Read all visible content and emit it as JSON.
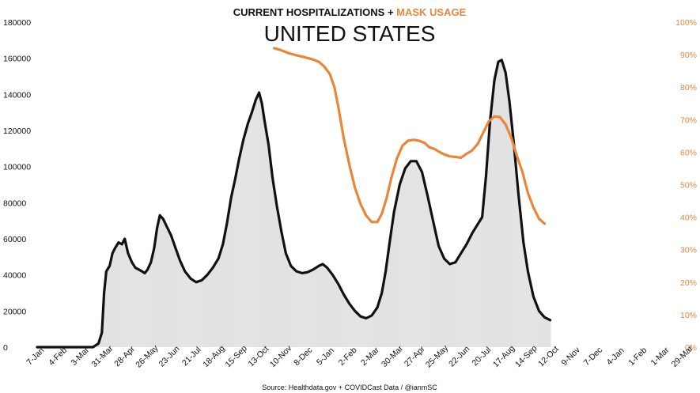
{
  "chart_data": {
    "type": "line",
    "title_part1": "CURRENT HOSPITALIZATIONS + ",
    "title_part2": "MASK USAGE",
    "subtitle": "UNITED STATES",
    "source": "Source: Healthdata.gov + COVIDCast Data / @ianmSC",
    "left_axis": {
      "ylim": [
        0,
        180000
      ],
      "ticks": [
        0,
        20000,
        40000,
        60000,
        80000,
        100000,
        120000,
        140000,
        160000,
        180000
      ],
      "tick_labels": [
        "0",
        "20000",
        "40000",
        "60000",
        "80000",
        "100000",
        "120000",
        "140000",
        "160000",
        "180000"
      ]
    },
    "right_axis": {
      "ylim": [
        0,
        100
      ],
      "ticks": [
        0,
        10,
        20,
        30,
        40,
        50,
        60,
        70,
        80,
        90,
        100
      ],
      "tick_labels": [
        "0%",
        "10%",
        "20%",
        "30%",
        "40%",
        "50%",
        "60%",
        "70%",
        "80%",
        "90%",
        "100%"
      ]
    },
    "x_tick_labels": [
      "7-Jan",
      "4-Feb",
      "3-Mar",
      "31-Mar",
      "28-Apr",
      "26-May",
      "23-Jun",
      "21-Jul",
      "18-Aug",
      "15-Sep",
      "13-Oct",
      "10-Nov",
      "8-Dec",
      "5-Jan",
      "2-Feb",
      "2-Mar",
      "30-Mar",
      "27-Apr",
      "25-May",
      "22-Jun",
      "20-Jul",
      "17-Aug",
      "14-Sep",
      "12-Oct",
      "9-Nov",
      "7-Dec",
      "4-Jan",
      "1-Feb",
      "1-Mar",
      "29-Mar"
    ],
    "x_start": "7-Jan",
    "x_step_weeks": 4,
    "series": [
      {
        "name": "Current Hospitalizations",
        "axis": "left",
        "color": "#111111",
        "points": [
          [
            0,
            0
          ],
          [
            10,
            0
          ],
          [
            11,
            2000
          ],
          [
            11.6,
            8000
          ],
          [
            12,
            30000
          ],
          [
            12.4,
            42000
          ],
          [
            13,
            45000
          ],
          [
            13.5,
            52000
          ],
          [
            14,
            55000
          ],
          [
            14.6,
            58000
          ],
          [
            15.2,
            57000
          ],
          [
            15.7,
            60000
          ],
          [
            16.3,
            52000
          ],
          [
            17,
            47000
          ],
          [
            17.6,
            44000
          ],
          [
            18.2,
            43000
          ],
          [
            18.8,
            42000
          ],
          [
            19.3,
            41000
          ],
          [
            19.8,
            43000
          ],
          [
            20.4,
            47000
          ],
          [
            21,
            55000
          ],
          [
            21.5,
            66000
          ],
          [
            22,
            73000
          ],
          [
            22.6,
            71000
          ],
          [
            23.2,
            67000
          ],
          [
            24,
            62000
          ],
          [
            24.8,
            55000
          ],
          [
            25.6,
            48000
          ],
          [
            26.5,
            42000
          ],
          [
            27.5,
            38000
          ],
          [
            28.5,
            36000
          ],
          [
            29.5,
            37000
          ],
          [
            30.5,
            40000
          ],
          [
            31.5,
            44000
          ],
          [
            32.5,
            49000
          ],
          [
            33.3,
            57000
          ],
          [
            34,
            68000
          ],
          [
            34.8,
            83000
          ],
          [
            35.5,
            93000
          ],
          [
            36.2,
            104000
          ],
          [
            37,
            115000
          ],
          [
            37.8,
            124000
          ],
          [
            38.5,
            130000
          ],
          [
            39.2,
            137000
          ],
          [
            39.8,
            141000
          ],
          [
            40.3,
            135000
          ],
          [
            40.8,
            125000
          ],
          [
            41.5,
            112000
          ],
          [
            42.2,
            94000
          ],
          [
            43,
            78000
          ],
          [
            43.8,
            64000
          ],
          [
            44.6,
            52000
          ],
          [
            45.5,
            45000
          ],
          [
            46.5,
            42000
          ],
          [
            47.5,
            41000
          ],
          [
            48.5,
            41500
          ],
          [
            49.5,
            43000
          ],
          [
            50.5,
            45000
          ],
          [
            51.2,
            46000
          ],
          [
            52,
            44000
          ],
          [
            53,
            40000
          ],
          [
            54,
            35000
          ],
          [
            55,
            29000
          ],
          [
            56,
            24000
          ],
          [
            57,
            20000
          ],
          [
            58,
            17000
          ],
          [
            59,
            16000
          ],
          [
            60,
            17500
          ],
          [
            61,
            22000
          ],
          [
            61.8,
            30000
          ],
          [
            62.5,
            42000
          ],
          [
            63.2,
            58000
          ],
          [
            64,
            75000
          ],
          [
            65,
            90000
          ],
          [
            66,
            99000
          ],
          [
            67,
            103000
          ],
          [
            68,
            103000
          ],
          [
            69,
            97000
          ],
          [
            70,
            84000
          ],
          [
            71,
            70000
          ],
          [
            72,
            56000
          ],
          [
            73,
            49000
          ],
          [
            74,
            46000
          ],
          [
            75,
            47000
          ],
          [
            76,
            52000
          ],
          [
            77,
            57000
          ],
          [
            78,
            63000
          ],
          [
            79,
            68000
          ],
          [
            79.8,
            72000
          ],
          [
            80.5,
            95000
          ],
          [
            81.2,
            125000
          ],
          [
            82,
            148000
          ],
          [
            82.7,
            158000
          ],
          [
            83.3,
            159000
          ],
          [
            84,
            152000
          ],
          [
            84.7,
            136000
          ],
          [
            85.5,
            112000
          ],
          [
            86.3,
            85000
          ],
          [
            87.2,
            58000
          ],
          [
            88,
            42000
          ],
          [
            89,
            28000
          ],
          [
            90,
            20000
          ],
          [
            91,
            16500
          ],
          [
            92,
            15000
          ]
        ]
      },
      {
        "name": "Mask Usage",
        "axis": "right",
        "color": "#E8863A",
        "points": [
          [
            42.5,
            92
          ],
          [
            43.5,
            91.5
          ],
          [
            45,
            90.5
          ],
          [
            46.5,
            89.8
          ],
          [
            48,
            89.2
          ],
          [
            49.5,
            88.5
          ],
          [
            50.5,
            87.8
          ],
          [
            51.5,
            86.3
          ],
          [
            52.5,
            84
          ],
          [
            53.3,
            80
          ],
          [
            54,
            74
          ],
          [
            55,
            64
          ],
          [
            56,
            56
          ],
          [
            57,
            49
          ],
          [
            58,
            44
          ],
          [
            59,
            40.5
          ],
          [
            60,
            38.5
          ],
          [
            61,
            38.5
          ],
          [
            61.8,
            41
          ],
          [
            62.7,
            46
          ],
          [
            63.5,
            52
          ],
          [
            64.5,
            58
          ],
          [
            65.5,
            62
          ],
          [
            66.5,
            63.5
          ],
          [
            67.5,
            63.8
          ],
          [
            68.5,
            63.5
          ],
          [
            69.5,
            62.8
          ],
          [
            70.3,
            61.5
          ],
          [
            71.2,
            61
          ],
          [
            72,
            60.2
          ],
          [
            73,
            59.3
          ],
          [
            74,
            58.7
          ],
          [
            75,
            58.5
          ],
          [
            76,
            58.3
          ],
          [
            77,
            59.5
          ],
          [
            78,
            60.5
          ],
          [
            79,
            62.5
          ],
          [
            80,
            66
          ],
          [
            81,
            69.5
          ],
          [
            82,
            71
          ],
          [
            83,
            70.8
          ],
          [
            84,
            68.5
          ],
          [
            85,
            64.5
          ],
          [
            86,
            59
          ],
          [
            87,
            54
          ],
          [
            88,
            47.5
          ],
          [
            89,
            43
          ],
          [
            90,
            39.5
          ],
          [
            91,
            38
          ]
        ]
      }
    ]
  }
}
